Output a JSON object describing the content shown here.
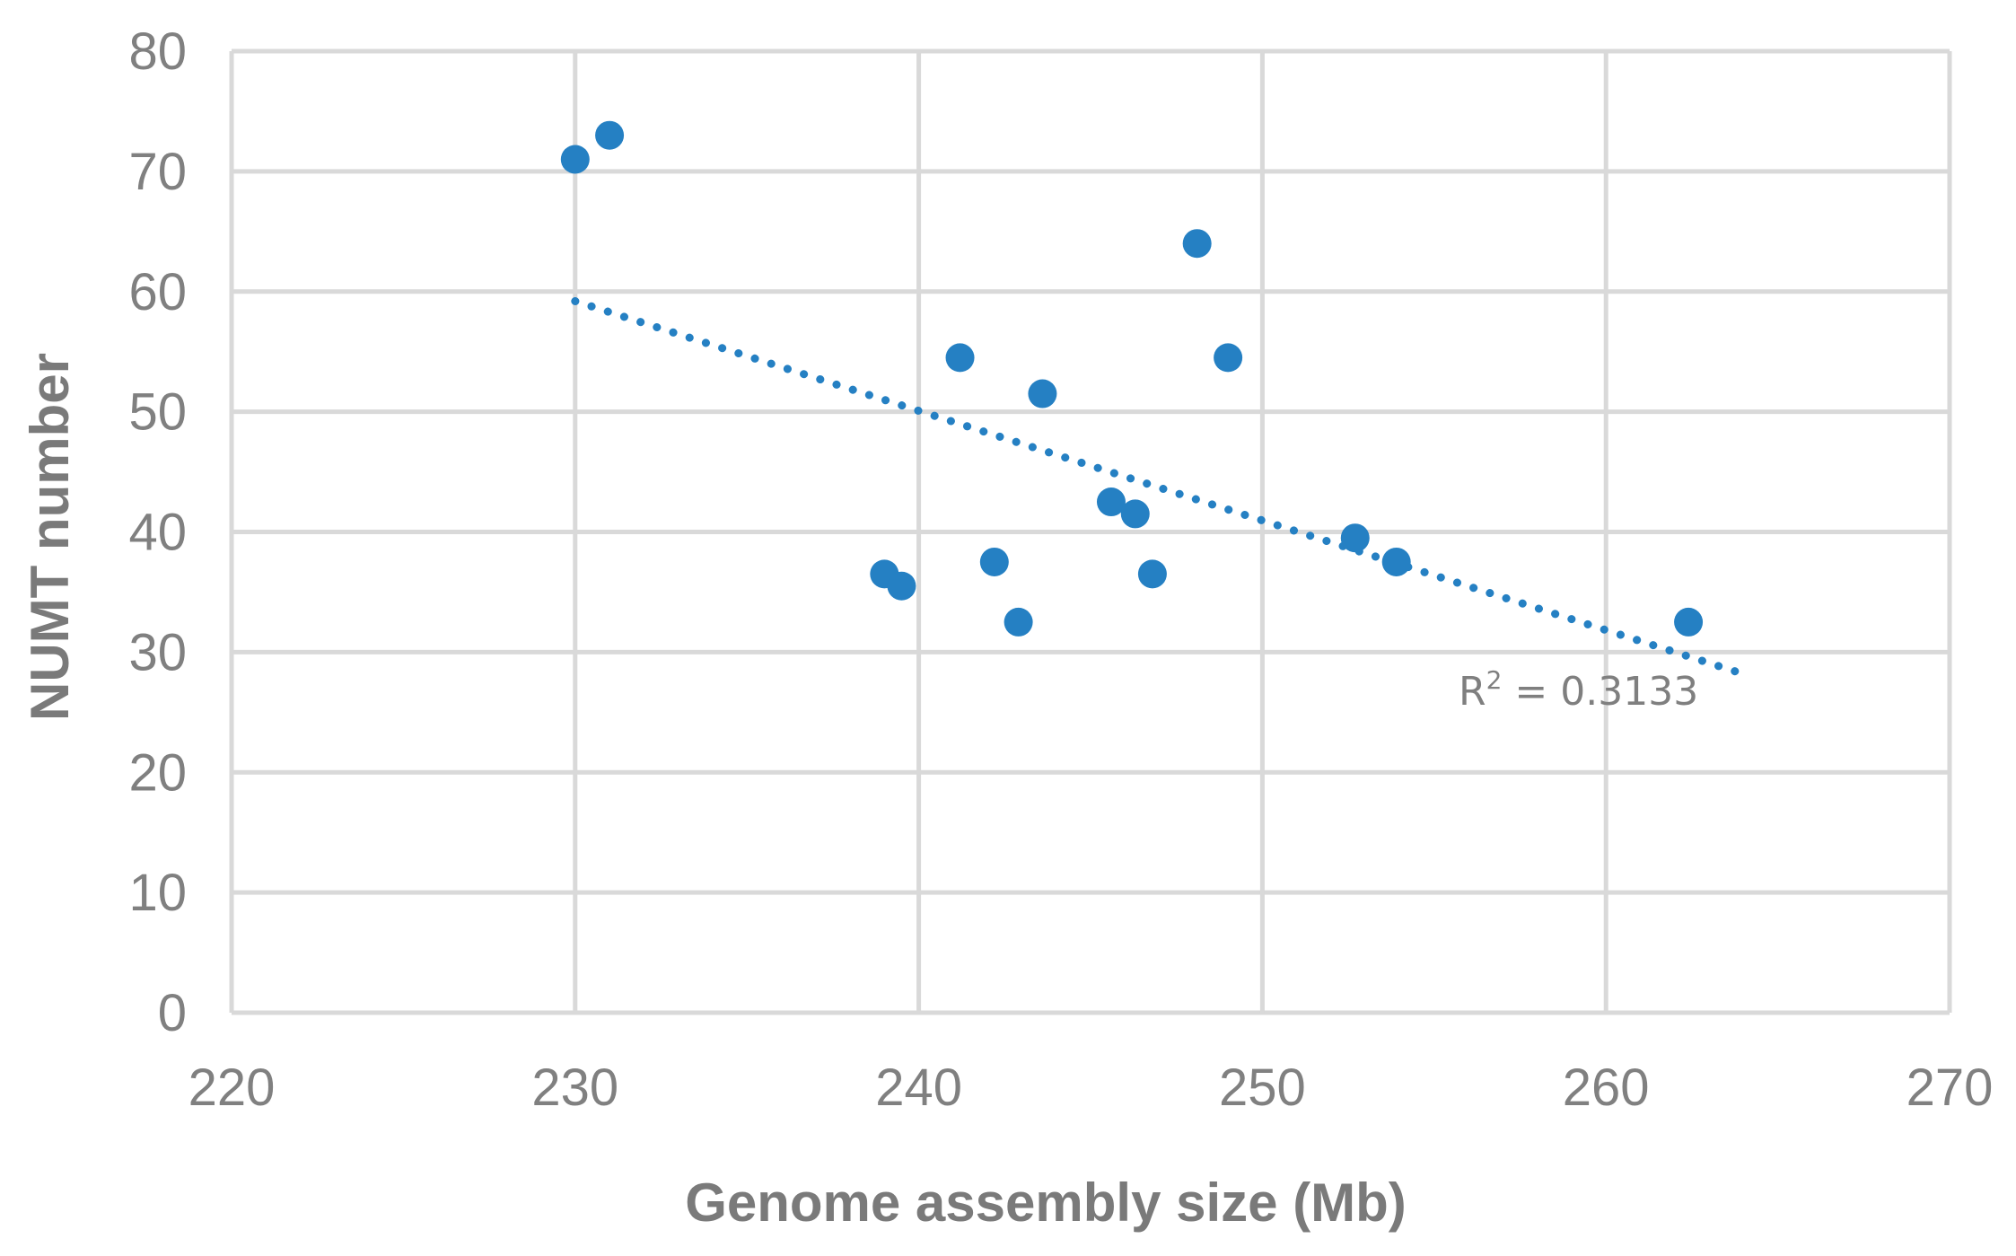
{
  "chart_data": {
    "type": "scatter",
    "title": "",
    "xlabel": "Genome assembly size (Mb)",
    "ylabel": "NUMT number",
    "xlim": [
      220,
      270
    ],
    "ylim": [
      0,
      80
    ],
    "xticks": [
      220,
      230,
      240,
      250,
      260,
      270
    ],
    "yticks": [
      0,
      10,
      20,
      30,
      40,
      50,
      60,
      70,
      80
    ],
    "grid": true,
    "legend": "none",
    "series": [
      {
        "color": "#2580C3",
        "x": [
          230.0,
          231.0,
          239.0,
          239.5,
          241.2,
          242.2,
          242.9,
          243.6,
          245.6,
          246.3,
          246.8,
          248.1,
          249.0,
          252.7,
          253.9,
          262.4
        ],
        "y": [
          71,
          73,
          36.5,
          35.5,
          54.5,
          37.5,
          32.5,
          51.5,
          42.5,
          41.5,
          36.5,
          64,
          54.5,
          39.5,
          37.5,
          32.5
        ]
      }
    ],
    "trendline": {
      "kind": "linear",
      "style": "dotted",
      "color": "#2580C3",
      "x_start": 230.0,
      "y_start": 59.2,
      "x_end": 264.2,
      "y_end": 28.0,
      "label_main": "R",
      "label_sup": "2",
      "label_rest": " = 0.3133"
    },
    "colors": {
      "grid": "#d9d9d9",
      "text": "#808080",
      "points": "#2580C3"
    }
  }
}
